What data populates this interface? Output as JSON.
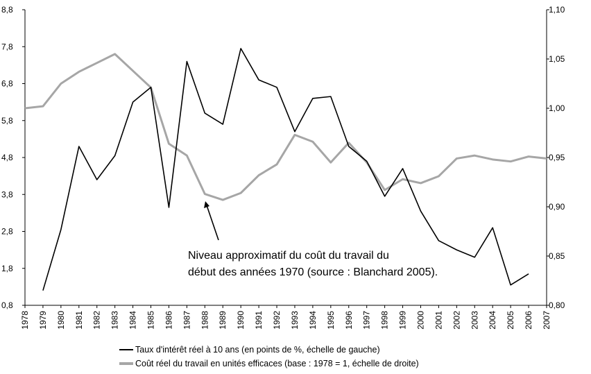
{
  "chart_data": {
    "type": "line",
    "x": [
      "1978",
      "1979",
      "1980",
      "1981",
      "1982",
      "1983",
      "1984",
      "1985",
      "1986",
      "1987",
      "1988",
      "1989",
      "1990",
      "1991",
      "1992",
      "1993",
      "1994",
      "1995",
      "1996",
      "1997",
      "1998",
      "1999",
      "2000",
      "2001",
      "2002",
      "2003",
      "2004",
      "2005",
      "2006",
      "2007"
    ],
    "left_axis": {
      "range": [
        0.8,
        8.8
      ],
      "ticks": [
        "0,8",
        "1,8",
        "2,8",
        "3,8",
        "4,8",
        "5,8",
        "6,8",
        "7,8",
        "8,8"
      ],
      "tick_values": [
        0.8,
        1.8,
        2.8,
        3.8,
        4.8,
        5.8,
        6.8,
        7.8,
        8.8
      ]
    },
    "right_axis": {
      "range": [
        0.8,
        1.1
      ],
      "ticks": [
        "0,80",
        "0,85",
        "0,90",
        "0,95",
        "1,00",
        "1,05",
        "1,10"
      ],
      "tick_values": [
        0.8,
        0.85,
        0.9,
        0.95,
        1.0,
        1.05,
        1.1
      ]
    },
    "series": [
      {
        "name": "Taux d'intérêt réel à 10 ans (en points de %, échelle de gauche)",
        "axis": "left",
        "color": "#000000",
        "values": [
          null,
          1.2,
          2.85,
          5.1,
          4.2,
          4.85,
          6.3,
          6.7,
          3.45,
          7.4,
          6.0,
          5.7,
          7.75,
          6.9,
          6.7,
          5.5,
          6.4,
          6.45,
          5.1,
          4.7,
          3.75,
          4.5,
          3.35,
          2.55,
          2.3,
          2.1,
          2.9,
          1.35,
          1.65,
          null
        ]
      },
      {
        "name": "Coût réel du travail en unités efficaces (base : 1978 = 1, échelle de droite)",
        "axis": "right",
        "color": "#a6a6a6",
        "values": [
          1.0,
          1.002,
          1.025,
          1.037,
          1.046,
          1.055,
          1.038,
          1.021,
          0.964,
          0.952,
          0.913,
          0.907,
          0.914,
          0.932,
          0.943,
          0.973,
          0.966,
          0.945,
          0.965,
          0.945,
          0.917,
          0.928,
          0.924,
          0.931,
          0.949,
          0.952,
          0.948,
          0.946,
          0.951,
          0.949
        ]
      }
    ],
    "annotation": {
      "lines": [
        "Niveau approximatif du coût du travail du",
        "début des années 1970 (source : Blanchard 2005)."
      ]
    },
    "grid": false,
    "legend_position": "bottom"
  }
}
